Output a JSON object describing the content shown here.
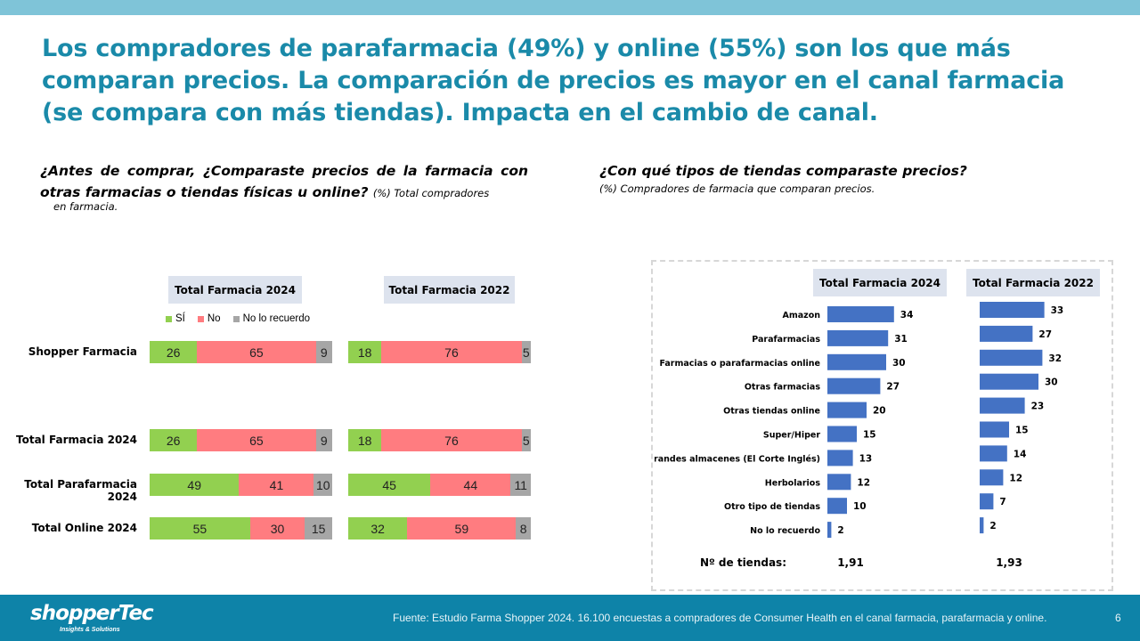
{
  "title": "Los compradores de parafarmacia (49%) y online (55%) son los que más comparan precios. La comparación de precios es mayor en el canal farmacia (se compara con más tiendas). Impacta en el cambio de canal.",
  "left": {
    "question_main": "¿Antes de comprar, ¿Comparaste precios de la farmacia con otras farmacias o tiendas  físicas  u online?",
    "question_note": "(%) Total compradores",
    "question_note2": "en farmacia."
  },
  "right": {
    "question_main": "¿Con qué tipos de tiendas comparaste precios?",
    "question_note": "(%) Compradores de farmacia  que comparan precios."
  },
  "colors": {
    "si": "#92d050",
    "no": "#ff7c80",
    "no_recuerdo": "#a6a6a6",
    "bar": "#4472c4",
    "title": "#1a8aa9"
  },
  "chart_data": [
    {
      "type": "bar",
      "orientation": "horizontal",
      "stacked": true,
      "panels": [
        "Total Farmacia 2024",
        "Total Farmacia 2022"
      ],
      "legend": [
        "SÍ",
        "No",
        "No lo recuerdo"
      ],
      "categories": [
        "Shopper Farmacia",
        "Total Farmacia 2024",
        "Total Parafarmacia 2024",
        "Total Online 2024"
      ],
      "series_2024": [
        {
          "name": "SÍ",
          "values": [
            26,
            26,
            49,
            55
          ]
        },
        {
          "name": "No",
          "values": [
            65,
            65,
            41,
            30
          ]
        },
        {
          "name": "No lo recuerdo",
          "values": [
            9,
            9,
            10,
            15
          ]
        }
      ],
      "series_2022": [
        {
          "name": "SÍ",
          "values": [
            18,
            18,
            45,
            32
          ]
        },
        {
          "name": "No",
          "values": [
            76,
            76,
            44,
            59
          ]
        },
        {
          "name": "No lo recuerdo",
          "values": [
            5,
            5,
            11,
            8
          ]
        }
      ],
      "xlim": [
        0,
        100
      ]
    },
    {
      "type": "bar",
      "orientation": "horizontal",
      "panels": [
        "Total Farmacia 2024",
        "Total Farmacia 2022"
      ],
      "categories": [
        "Amazon",
        "Parafarmacias",
        "Farmacias o parafarmacias online",
        "Otras farmacias",
        "Otras tiendas online",
        "Super/Hiper",
        "Grandes almacenes (El Corte Inglés)",
        "Herbolarios",
        "Otro tipo de tiendas",
        "No lo recuerdo"
      ],
      "values_2024": [
        34,
        31,
        30,
        27,
        20,
        15,
        13,
        12,
        10,
        2
      ],
      "values_2022": [
        33,
        27,
        32,
        30,
        23,
        15,
        14,
        12,
        7,
        2
      ],
      "stores_label": "Nº de tiendas:",
      "stores_2024": "1,91",
      "stores_2022": "1,93"
    }
  ],
  "footer": {
    "logo": "shopperTec",
    "logo_sub": "Insights & Solutions",
    "source": "Fuente: Estudio Farma Shopper 2024. 16.100 encuestas a compradores de Consumer Health en el canal farmacia, parafarmacia y online.",
    "page": "6"
  }
}
